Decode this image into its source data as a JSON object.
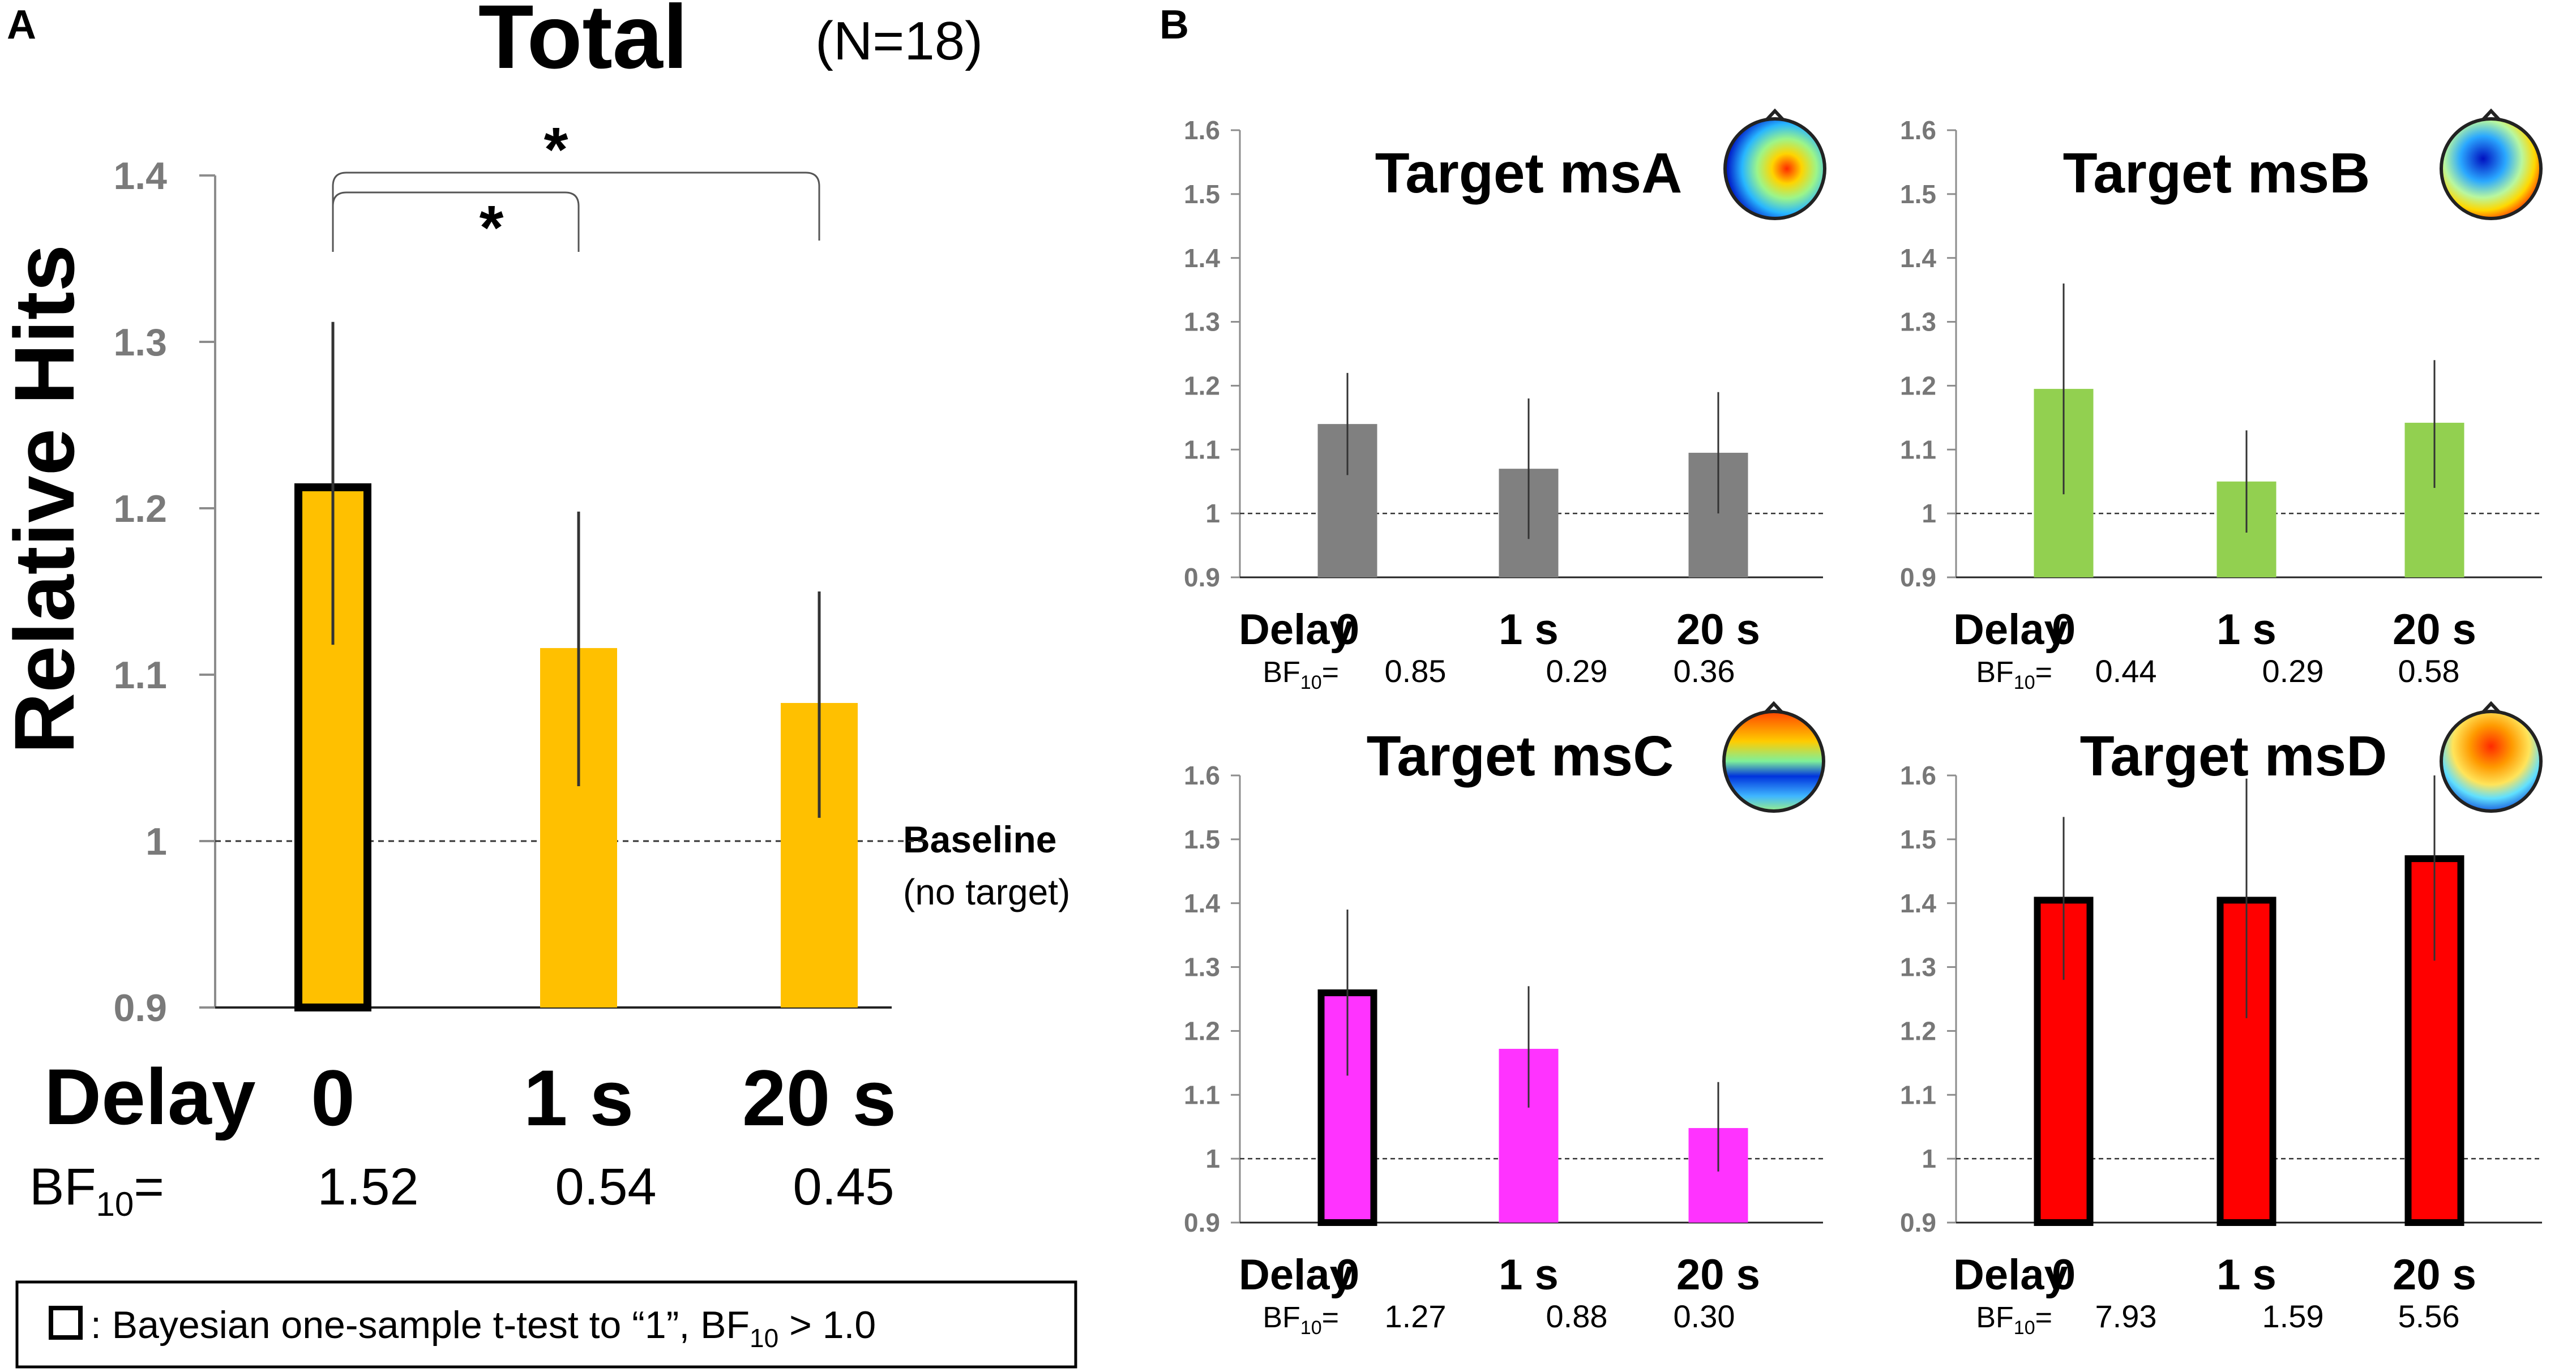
{
  "panel_a": {
    "label": "A",
    "title": "Total",
    "n_label": "(N=18)",
    "ylabel": "Relative Hits",
    "baseline_label": "Baseline",
    "baseline_sub": "(no target)",
    "delay_label": "Delay",
    "bf_prefix": "BF",
    "bf_sub": "10",
    "bf_suffix": "=",
    "sig_marks": [
      "*",
      "*"
    ]
  },
  "panel_b": {
    "label": "B"
  },
  "legend": {
    "prefix": ": Bayesian one-sample t-test to “1”, BF",
    "sub": "10",
    "suffix": " > 1.0"
  },
  "chart_data": [
    {
      "id": "total",
      "type": "bar",
      "title": "Total",
      "subtitle": "(N=18)",
      "ylabel": "Relative Hits",
      "xlabel": "Delay",
      "categories": [
        "0",
        "1 s",
        "20 s"
      ],
      "values": [
        1.215,
        1.116,
        1.083
      ],
      "errors": [
        [
          1.118,
          1.312
        ],
        [
          1.033,
          1.198
        ],
        [
          1.014,
          1.15
        ]
      ],
      "bf10": [
        "1.52",
        "0.54",
        "0.45"
      ],
      "highlight": [
        true,
        false,
        false
      ],
      "color": "#FFC000",
      "ylim": [
        0.9,
        1.4
      ],
      "yticks": [
        "0.9",
        "1",
        "1.1",
        "1.2",
        "1.3",
        "1.4"
      ],
      "baseline": 1,
      "annotations": [
        {
          "from": "0",
          "to": "1 s",
          "label": "*"
        },
        {
          "from": "0",
          "to": "20 s",
          "label": "*"
        }
      ]
    },
    {
      "id": "msA",
      "type": "bar",
      "title": "Target msA",
      "xlabel": "Delay",
      "categories": [
        "0",
        "1 s",
        "20 s"
      ],
      "values": [
        1.14,
        1.07,
        1.095
      ],
      "errors": [
        [
          1.06,
          1.22
        ],
        [
          0.96,
          1.18
        ],
        [
          1.0,
          1.19
        ]
      ],
      "bf10": [
        "0.85",
        "0.29",
        "0.36"
      ],
      "highlight": [
        false,
        false,
        false
      ],
      "color": "#808080",
      "ylim": [
        0.9,
        1.6
      ],
      "yticks": [
        "0.9",
        "1",
        "1.1",
        "1.2",
        "1.3",
        "1.4",
        "1.5",
        "1.6"
      ],
      "baseline": 1,
      "topomap": "topomap-msA"
    },
    {
      "id": "msB",
      "type": "bar",
      "title": "Target msB",
      "xlabel": "Delay",
      "categories": [
        "0",
        "1 s",
        "20 s"
      ],
      "values": [
        1.195,
        1.05,
        1.142
      ],
      "errors": [
        [
          1.03,
          1.36
        ],
        [
          0.97,
          1.13
        ],
        [
          1.04,
          1.24
        ]
      ],
      "bf10": [
        "0.44",
        "0.29",
        "0.58"
      ],
      "highlight": [
        false,
        false,
        false
      ],
      "color": "#92D050",
      "ylim": [
        0.9,
        1.6
      ],
      "yticks": [
        "0.9",
        "1",
        "1.1",
        "1.2",
        "1.3",
        "1.4",
        "1.5",
        "1.6"
      ],
      "baseline": 1,
      "topomap": "topomap-msB"
    },
    {
      "id": "msC",
      "type": "bar",
      "title": "Target msC",
      "xlabel": "Delay",
      "categories": [
        "0",
        "1 s",
        "20 s"
      ],
      "values": [
        1.265,
        1.172,
        1.048
      ],
      "errors": [
        [
          1.13,
          1.39
        ],
        [
          1.08,
          1.27
        ],
        [
          0.98,
          1.12
        ]
      ],
      "bf10": [
        "1.27",
        "0.88",
        "0.30"
      ],
      "highlight": [
        true,
        false,
        false
      ],
      "color": "#FF33FF",
      "ylim": [
        0.9,
        1.6
      ],
      "yticks": [
        "0.9",
        "1",
        "1.1",
        "1.2",
        "1.3",
        "1.4",
        "1.5",
        "1.6"
      ],
      "baseline": 1,
      "topomap": "topomap-msC"
    },
    {
      "id": "msD",
      "type": "bar",
      "title": "Target msD",
      "xlabel": "Delay",
      "categories": [
        "0",
        "1 s",
        "20 s"
      ],
      "values": [
        1.41,
        1.41,
        1.475
      ],
      "errors": [
        [
          1.28,
          1.535
        ],
        [
          1.22,
          1.595
        ],
        [
          1.31,
          1.6
        ]
      ],
      "bf10": [
        "7.93",
        "1.59",
        "5.56"
      ],
      "highlight": [
        true,
        true,
        true
      ],
      "color": "#FF0000",
      "ylim": [
        0.9,
        1.6
      ],
      "yticks": [
        "0.9",
        "1",
        "1.1",
        "1.2",
        "1.3",
        "1.4",
        "1.5",
        "1.6"
      ],
      "baseline": 1,
      "topomap": "topomap-msD"
    }
  ]
}
